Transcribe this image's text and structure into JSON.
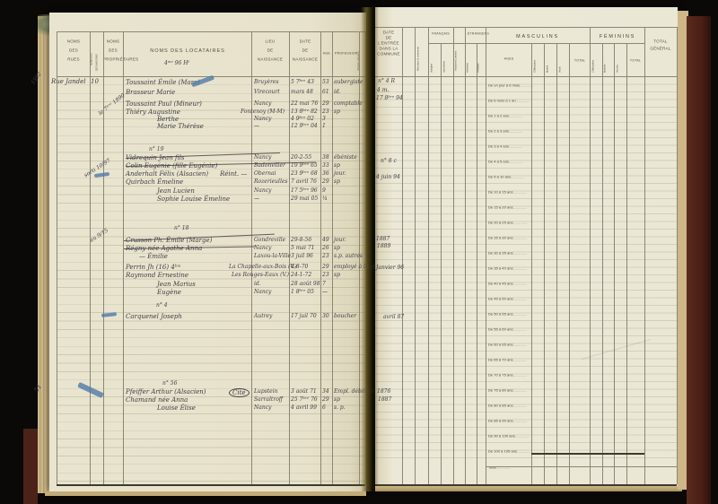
{
  "colors": {
    "background": "#0a0908",
    "paper_left": "#e9e4cf",
    "paper_right": "#ebe7d5",
    "ink": "#3f3d47",
    "blue_pencil": "#4e79a9",
    "cover": "#4a1f16",
    "table_line": "#8b8673"
  },
  "left_page": {
    "header": {
      "rues": [
        "NOMS",
        "DES",
        "RUES"
      ],
      "maisons_1": "NUMÉROS",
      "maisons_2": "DES MAISONS",
      "proprietaires": [
        "NOMS",
        "DES",
        "PROPRIÉTAIRES"
      ],
      "locataires": "NOMS DES LOCATAIRES",
      "lieu": [
        "LIEU",
        "DE",
        "NAISSANCE"
      ],
      "date": [
        "DATE",
        "DE",
        "NAISSANCE"
      ],
      "age": "AGE",
      "profession": "PROFESSION",
      "observations": "ORDRE MÉNAGE"
    },
    "street": "Rue Jandel",
    "house_number": "10",
    "margin_notes": [
      "1592",
      "Rue Jandel",
      "10",
      "le 7ᵇʳᵉ 1890",
      "n° 19",
      "sorti 10/97",
      "n° 18",
      "au 9/15",
      "n° 4",
      "n° 56",
      "51",
      "4ᵐᵉ 96 Hᵗ"
    ],
    "rows": [
      {
        "name": "Toussaint Émile (Marc)",
        "place": "Bruyères",
        "date": "5 7ᵇʳᵉ 43",
        "age": "53",
        "profession": "aubergiste"
      },
      {
        "name": "Brasseur Marie",
        "place": "Virecourt",
        "date": "mars 48",
        "age": "61",
        "profession": "id."
      },
      {
        "name": "Toussaint Paul (Mineur)",
        "place": "Nancy",
        "date": "22 mai 76",
        "age": "29",
        "profession": "comptable"
      },
      {
        "name": "Thiéry Augustine",
        "place": "Fontenoy (M-M)",
        "date": "13 8ᵇʳᵉ 82",
        "age": "23",
        "profession": "sp"
      },
      {
        "name": "Berthe",
        "place": "Nancy",
        "date": "4 9ᵇʳᵉ 02",
        "age": "3"
      },
      {
        "name": "Marie Thérèse",
        "place": "—",
        "date": "12 9ᵇʳᵉ 04",
        "age": "1"
      },
      {
        "name": "Vidrequin Jean fils",
        "place": "Nancy",
        "date": "20-2-55",
        "age": "38",
        "profession": "ébéniste",
        "struck": true
      },
      {
        "name": "Colin Eugénie (fille Eugénie)",
        "place": "Badonviller",
        "date": "19 9ᵇʳᵉ 65",
        "age": "33",
        "profession": "sp",
        "struck": true
      },
      {
        "name": "Anderhalt Félix (Alsacien)",
        "annotation": "Réint. —",
        "place": "Obernai",
        "date": "23 9ᵇʳᵉ 68",
        "age": "36",
        "profession": "jour."
      },
      {
        "name": "Quirbach Émeline",
        "place": "Rozerieulles",
        "date": "7 avril 76",
        "age": "29",
        "profession": "sp"
      },
      {
        "name": "Jean Lucien",
        "place": "Nancy",
        "date": "17 5ᵇʳᵉ 96",
        "age": "9"
      },
      {
        "name": "Sophie Louise Émeline",
        "place": "—",
        "date": "29 mai 05",
        "age": "¼"
      },
      {
        "name": "Crusson Ph. Émile (Marge)",
        "place": "Gondreville",
        "date": "29-8-56",
        "age": "49",
        "profession": "jour.",
        "struck": true
      },
      {
        "name": "Régny née Agathe Anna",
        "place": "Nancy",
        "date": "5 mai 71",
        "age": "26",
        "profession": "sp",
        "struck": true
      },
      {
        "name": "— Émilie",
        "place": "Laxou-la-Ville",
        "date": "3 juil 96",
        "age": "23",
        "profession": "s.p. autres"
      },
      {
        "name": "Perrin Jh (16)  4ᵇⁱˢ",
        "place": "La Chapelle-aux-Bois (V.)",
        "date": "4-8-70",
        "age": "29",
        "profession": "employé à la gare 1895"
      },
      {
        "name": "Raymond Ernestine",
        "place": "Les Rouges-Eaux (V.)",
        "date": "24-1-72",
        "age": "23",
        "profession": "sp"
      },
      {
        "name": "Jean Marius",
        "place": "id.",
        "date": "28 août 98",
        "age": "7"
      },
      {
        "name": "Eugène",
        "place": "Nancy",
        "date": "1 8ᵇʳᵉ 05",
        "age": "—"
      },
      {
        "name": "Carquenel Joseph",
        "place": "Autrey",
        "date": "17 juil 70",
        "age": "30",
        "profession": "boucher"
      },
      {
        "name": "Pfeiffer Arthur (Alsacien)",
        "annotation": "Cité",
        "place": "Lupstein",
        "date": "3 août 71",
        "age": "34",
        "profession": "Empl. débitant"
      },
      {
        "name": "Chamand née Anna",
        "place": "Sarraltroff",
        "date": "25 7ᵇʳᵉ 76",
        "age": "29",
        "profession": "sp"
      },
      {
        "name": "Louise Élise",
        "place": "Nancy",
        "date": "4 avril 99",
        "age": "6",
        "profession": "s. p."
      }
    ]
  },
  "right_page": {
    "header": {
      "entry_date": [
        "DATE",
        "DE L'ENTRÉE",
        "DANS LA",
        "COMMUNE"
      ],
      "nes_commune": "Nés dans la commune",
      "francais_group": "FRANÇAIS",
      "francais_cols": [
        "d'origine",
        "naturalisés"
      ],
      "alsaciens": "Alsaciens-Lorrains",
      "etrangers_group": "ÉTRANGERS",
      "etrangers_cols": [
        "Hommes",
        "Femmes"
      ],
      "masculins": "MASCULINS",
      "feminins": "FÉMININS",
      "ages": "AGES",
      "masc_cols": [
        "Célibataires",
        "Mariés",
        "Veufs"
      ],
      "fem_cols": [
        "Célibataires",
        "Mariées",
        "Veuves"
      ],
      "total": "TOTAL",
      "total_general": [
        "TOTAL",
        "GÉNÉRAL"
      ]
    },
    "age_rows": [
      "De un jour à 6 mois",
      "De 6 mois à 1 an",
      "De 1 à 2 ans",
      "De 2 à 3 ans",
      "De 3 à 4 ans",
      "De 4 à 5 ans",
      "De 5 à 10 ans",
      "De 10 à 15 ans",
      "De 15 à 20 ans",
      "De 20 à 25 ans",
      "De 25 à 30 ans",
      "De 30 à 35 ans",
      "De 35 à 40 ans",
      "De 40 à 45 ans",
      "De 45 à 50 ans",
      "De 50 à 55 ans",
      "De 55 à 60 ans",
      "De 60 à 65 ans",
      "De 65 à 70 ans",
      "De 70 à 75 ans",
      "De 75 à 80 ans",
      "De 80 à 85 ans",
      "De 85 à 90 ans",
      "De 90 à 100 ans",
      "De 100 à 105 ans"
    ],
    "total_row": "Total",
    "notes": [
      "n° 4 R",
      "4 m.",
      "17 8ᵇʳᵉ 94",
      "n° 8 c",
      "4 juin 94",
      "1887",
      "1889",
      "Janvier 96",
      "avril 87",
      "1876",
      "1887"
    ]
  }
}
